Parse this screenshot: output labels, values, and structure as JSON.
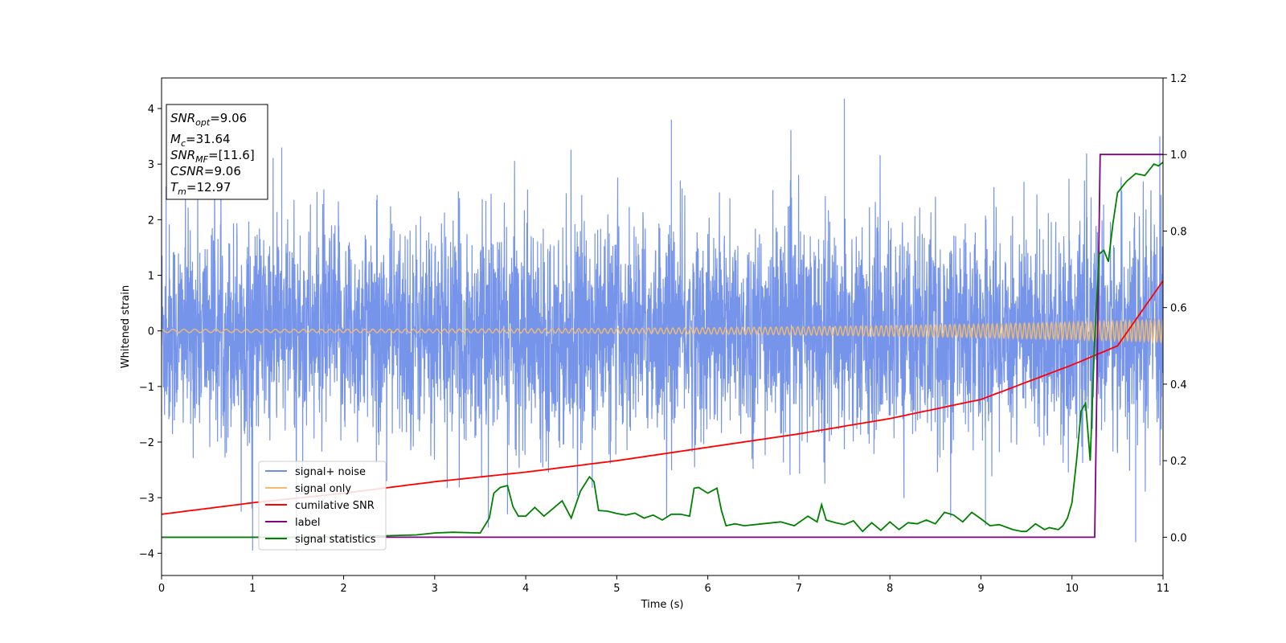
{
  "chart_data": {
    "type": "line",
    "title": "",
    "xlabel": "Time (s)",
    "ylabel": "Whitened strain",
    "xlim": [
      0,
      11
    ],
    "ylim": [
      -4.4,
      4.55
    ],
    "y2lim": [
      -0.1,
      1.2
    ],
    "x_ticks": [
      "0",
      "1",
      "2",
      "3",
      "4",
      "5",
      "6",
      "7",
      "8",
      "9",
      "10",
      "11"
    ],
    "y_ticks": [
      "−4",
      "−3",
      "−2",
      "−1",
      "0",
      "1",
      "2",
      "3",
      "4"
    ],
    "y2_ticks": [
      "0.0",
      "0.2",
      "0.4",
      "0.6",
      "0.8",
      "1.0",
      "1.2"
    ],
    "grid": false,
    "legend_position": "lower-left",
    "annotation": {
      "snr_opt": {
        "base": "SNR",
        "sub": "opt",
        "value": "=9.06"
      },
      "mc": {
        "base": "M",
        "sub": "c",
        "value": "=31.64"
      },
      "snr_mf": {
        "base": "SNR",
        "sub": "MF",
        "value": "=[11.6]"
      },
      "csnr": {
        "base": "CSNR",
        "value": "=9.06"
      },
      "tm": {
        "base": "T",
        "sub": "m",
        "value": "=12.97"
      }
    },
    "series": [
      {
        "name": "signal+ noise",
        "color": "#6f8ee8",
        "axis": "left",
        "description_stats": {
          "mean": 0,
          "std": 0.95,
          "min": -3.95,
          "max": 4.18
        },
        "peaks": [
          [
            0.05,
            2.6
          ],
          [
            1.0,
            -3.95
          ],
          [
            1.32,
            3.3
          ],
          [
            5.6,
            3.8
          ],
          [
            7.5,
            4.18
          ],
          [
            3.8,
            -3.3
          ],
          [
            9.05,
            -3.5
          ],
          [
            10.7,
            -3.8
          ]
        ]
      },
      {
        "name": "signal only",
        "color": "#f5bd6b",
        "axis": "left",
        "amplitude_start": 0.03,
        "amplitude_end": 0.2,
        "freq_start": 8,
        "freq_end": 22
      },
      {
        "name": "cumilative SNR",
        "color": "#ff0000",
        "axis": "right",
        "x": [
          0,
          1,
          2,
          3,
          4,
          5,
          6,
          7,
          8,
          9,
          10,
          10.5,
          11
        ],
        "y": [
          0.06,
          0.09,
          0.115,
          0.145,
          0.17,
          0.2,
          0.235,
          0.27,
          0.31,
          0.36,
          0.45,
          0.5,
          0.67
        ]
      },
      {
        "name": "label",
        "color": "#800080",
        "axis": "right",
        "x": [
          0,
          10.25,
          10.31,
          11
        ],
        "y": [
          0.0,
          0.0,
          1.0,
          1.0
        ]
      },
      {
        "name": "signal statistics",
        "color": "#008000",
        "axis": "right",
        "x": [
          0,
          0.5,
          1.0,
          1.5,
          2.0,
          2.5,
          2.8,
          3.0,
          3.2,
          3.5,
          3.6,
          3.65,
          3.72,
          3.8,
          3.86,
          3.92,
          4.0,
          4.1,
          4.2,
          4.3,
          4.4,
          4.5,
          4.6,
          4.7,
          4.75,
          4.8,
          4.9,
          5.0,
          5.1,
          5.2,
          5.3,
          5.4,
          5.5,
          5.6,
          5.7,
          5.8,
          5.85,
          5.9,
          6.0,
          6.1,
          6.15,
          6.2,
          6.3,
          6.4,
          6.6,
          6.8,
          6.95,
          7.1,
          7.2,
          7.25,
          7.3,
          7.4,
          7.5,
          7.6,
          7.7,
          7.8,
          7.9,
          8.0,
          8.1,
          8.2,
          8.3,
          8.4,
          8.5,
          8.6,
          8.7,
          8.8,
          8.9,
          9.0,
          9.1,
          9.2,
          9.35,
          9.45,
          9.5,
          9.6,
          9.7,
          9.75,
          9.85,
          9.9,
          9.95,
          10.0,
          10.05,
          10.1,
          10.15,
          10.2,
          10.25,
          10.3,
          10.35,
          10.4,
          10.45,
          10.5,
          10.55,
          10.6,
          10.7,
          10.8,
          10.85,
          10.9,
          10.95,
          11.0
        ],
        "y": [
          0.0,
          0.0,
          0.0,
          0.0,
          0.001,
          0.004,
          0.006,
          0.011,
          0.013,
          0.011,
          0.05,
          0.115,
          0.13,
          0.135,
          0.08,
          0.055,
          0.055,
          0.078,
          0.055,
          0.075,
          0.095,
          0.05,
          0.12,
          0.158,
          0.145,
          0.07,
          0.068,
          0.062,
          0.058,
          0.063,
          0.05,
          0.058,
          0.045,
          0.06,
          0.06,
          0.055,
          0.128,
          0.13,
          0.115,
          0.128,
          0.07,
          0.03,
          0.035,
          0.03,
          0.035,
          0.04,
          0.03,
          0.055,
          0.04,
          0.085,
          0.045,
          0.038,
          0.033,
          0.043,
          0.015,
          0.038,
          0.018,
          0.04,
          0.02,
          0.038,
          0.035,
          0.045,
          0.035,
          0.065,
          0.058,
          0.04,
          0.065,
          0.048,
          0.03,
          0.033,
          0.02,
          0.015,
          0.015,
          0.035,
          0.02,
          0.025,
          0.02,
          0.03,
          0.05,
          0.09,
          0.2,
          0.33,
          0.35,
          0.2,
          0.52,
          0.74,
          0.75,
          0.72,
          0.82,
          0.9,
          0.915,
          0.93,
          0.95,
          0.945,
          0.96,
          0.975,
          0.97,
          0.98
        ]
      }
    ]
  }
}
